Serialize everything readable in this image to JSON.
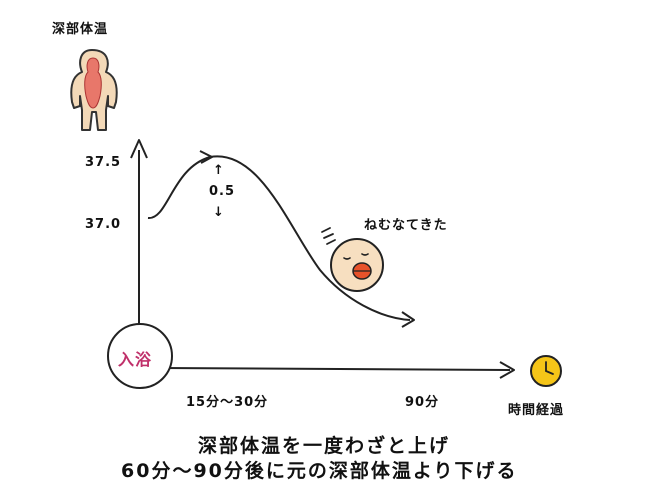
{
  "diagram": {
    "y_axis_title": "深部体温",
    "y_tick_high": "37.5",
    "y_tick_low": "37.0",
    "start_label": "入浴",
    "rise_arrow_up": "↑",
    "rise_value": "0.5",
    "rise_arrow_down": "↓",
    "sleepy_text": "ねむなてきた",
    "x_tick_early": "15分～30分",
    "x_tick_late": "90分",
    "x_axis_title": "時間経過"
  },
  "caption": {
    "line1": "深部体温を一度わざと上げ",
    "line2": "60分～90分後に元の深部体温より下げる"
  },
  "colors": {
    "body_fill": "#f3d9b8",
    "core_fill": "#e8776a",
    "start_text": "#c0306a",
    "clock_fill": "#f5c518",
    "face_fill": "#f7dfc0",
    "beak_fill": "#e8522a"
  },
  "icons": [
    "human-body-icon",
    "clock-icon",
    "sleepy-face-icon"
  ]
}
